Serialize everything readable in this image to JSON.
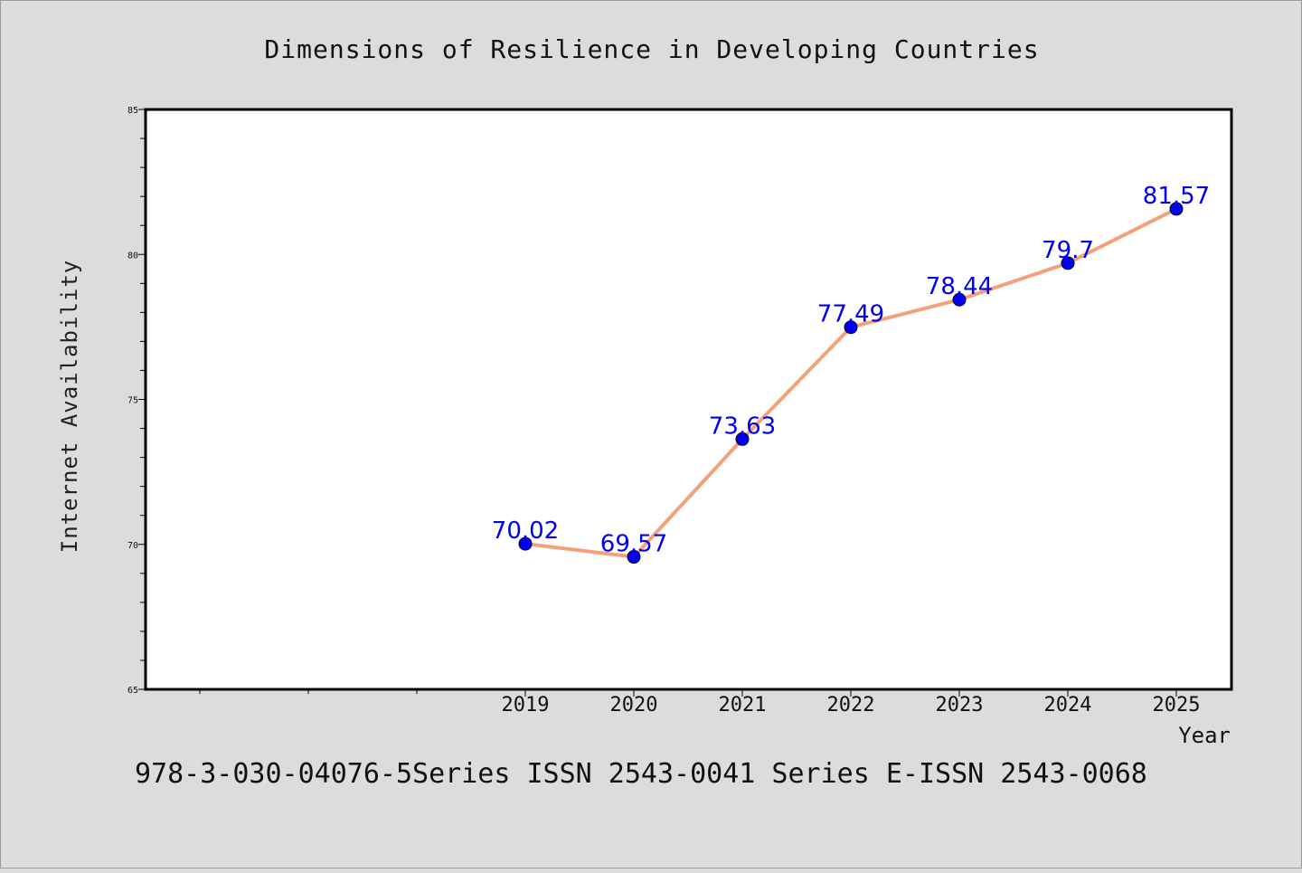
{
  "chart_data": {
    "type": "line",
    "title": "Dimensions of Resilience in Developing Countries",
    "xlabel": "Year",
    "ylabel": "Internet Availability",
    "x": [
      "2019",
      "2020",
      "2021",
      "2022",
      "2023",
      "2024",
      "2025"
    ],
    "series": [
      {
        "values": [
          70.02,
          69.57,
          73.63,
          77.49,
          78.44,
          79.7,
          81.57
        ],
        "labels": [
          "70.02",
          "69.57",
          "73.63",
          "77.49",
          "78.44",
          "79.7",
          "81.57"
        ],
        "line_color": "#f4a07a",
        "marker_color": "#0000ee"
      }
    ],
    "ylim": [
      65,
      85
    ],
    "yticks": [
      "65",
      "70",
      "75",
      "80",
      "85"
    ],
    "grid": false
  },
  "footer": "978-3-030-04076-5Series ISSN 2543-0041 Series E-ISSN 2543-0068"
}
